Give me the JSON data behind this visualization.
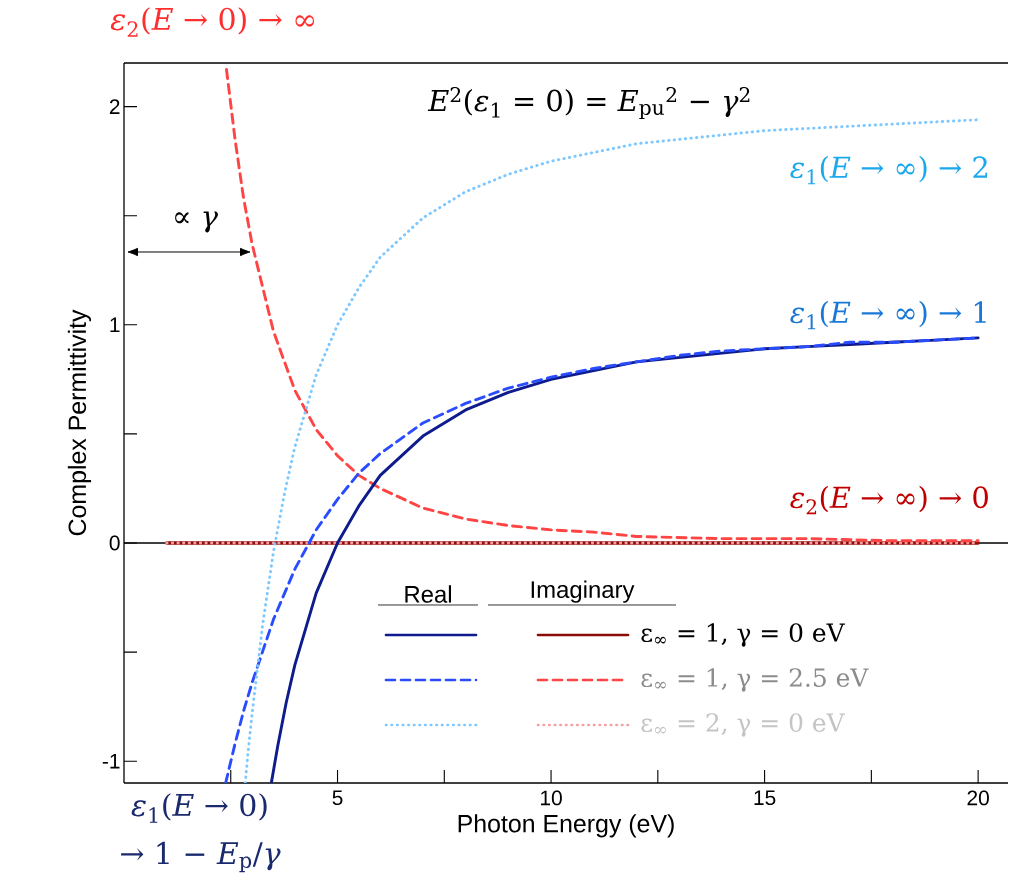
{
  "chart_data": {
    "type": "line",
    "xlabel": "Photon Energy (eV)",
    "ylabel": "Complex Permittivity",
    "xlim": [
      0,
      20.7
    ],
    "ylim": [
      -1.1,
      2.2
    ],
    "xticks": [
      {
        "value": 2.5,
        "label": null
      },
      5,
      {
        "value": 7.5,
        "label": null
      },
      10,
      {
        "value": 12.5,
        "label": null
      },
      15,
      {
        "value": 17.5,
        "label": null
      },
      20
    ],
    "yticks": [
      -1,
      {
        "value": -0.5,
        "label": null
      },
      0,
      {
        "value": 0.5,
        "label": null
      },
      1,
      {
        "value": 1.5,
        "label": null
      },
      2
    ],
    "legend": "bottom right",
    "series": [
      {
        "color": "#0d1b8c",
        "line_style": "solid",
        "x": [
          3.45,
          3.6,
          3.8,
          4,
          4.5,
          5,
          5.5,
          6,
          7,
          8,
          9,
          10,
          11,
          12,
          13,
          14,
          15,
          16,
          17,
          18,
          19,
          20
        ],
        "values": [
          -1.1,
          -0.93,
          -0.73,
          -0.56,
          -0.23,
          0,
          0.17,
          0.31,
          0.49,
          0.61,
          0.69,
          0.75,
          0.79,
          0.83,
          0.85,
          0.87,
          0.89,
          0.9,
          0.91,
          0.92,
          0.93,
          0.94
        ]
      },
      {
        "name": "ε$_{∞}$ = 1, γ = 0 eV",
        "color": "#8b0a0a",
        "line_style": "solid",
        "x": [
          1,
          20
        ],
        "values": [
          0,
          0
        ]
      },
      {
        "color": "#2a4cff",
        "line_style": "dashed",
        "x": [
          2.38,
          2.6,
          2.8,
          3,
          3.5,
          4,
          4.5,
          5,
          5.5,
          6,
          7,
          8,
          9,
          10,
          11,
          12,
          13,
          14,
          15,
          16,
          17,
          18,
          19,
          20
        ],
        "values": [
          -1.1,
          -0.92,
          -0.77,
          -0.64,
          -0.35,
          -0.12,
          0.06,
          0.2,
          0.32,
          0.41,
          0.55,
          0.64,
          0.71,
          0.76,
          0.8,
          0.83,
          0.86,
          0.88,
          0.89,
          0.9,
          0.92,
          0.92,
          0.93,
          0.94
        ]
      },
      {
        "name": "ε$_{∞}$ = 1, γ = 2.5 eV",
        "color": "#ff4444",
        "line_style": "dashed",
        "x": [
          2.4,
          2.6,
          2.8,
          3,
          3.5,
          4,
          4.5,
          5,
          5.5,
          6,
          7,
          8,
          9,
          10,
          11,
          12,
          14,
          16,
          18,
          20
        ],
        "values": [
          2.17,
          1.85,
          1.58,
          1.37,
          0.97,
          0.7,
          0.52,
          0.4,
          0.31,
          0.25,
          0.16,
          0.11,
          0.08,
          0.06,
          0.05,
          0.03,
          0.02,
          0.02,
          0.01,
          0.01
        ]
      },
      {
        "color": "#7cc8ff",
        "line_style": "dotted",
        "x": [
          2.84,
          2.9,
          3,
          3.25,
          3.5,
          3.75,
          4,
          4.5,
          5,
          5.5,
          6,
          7,
          8,
          9,
          10,
          11,
          12,
          13,
          14,
          15,
          16,
          17,
          18,
          19,
          20
        ],
        "values": [
          -1.1,
          -0.97,
          -0.78,
          -0.37,
          -0.04,
          0.22,
          0.44,
          0.77,
          1,
          1.17,
          1.31,
          1.49,
          1.61,
          1.69,
          1.75,
          1.79,
          1.83,
          1.85,
          1.87,
          1.89,
          1.9,
          1.91,
          1.92,
          1.93,
          1.94
        ]
      },
      {
        "name": "ε$_{∞}$ = 2, γ = 0 eV",
        "color": "#f5a0a0",
        "line_style": "dotted",
        "x": [
          1,
          20
        ],
        "values": [
          0,
          0
        ]
      }
    ],
    "ref_lines": [
      {
        "axis": "y",
        "value": 0,
        "color": "#000000"
      }
    ],
    "annotations": [
      "*ε*$_{2}$(*E* → 0) → ∞",
      "*E*$^{2}$(*ε*$_{1}$ = 0) = *E*$_{pu}$$^{2}$ − *γ*$^{2}$",
      "*ε*$_{1}$(*E* → ∞) → 2",
      "*ε*$_{1}$(*E* → ∞) → 1",
      "*ε*$_{2}$(*E* → ∞) → 0",
      "∝ *γ*",
      "*ε*$_{1}$(*E* → 0)",
      "→ 1 − *E*$_{p}$/*γ*",
      "Real",
      "Imaginary"
    ]
  }
}
